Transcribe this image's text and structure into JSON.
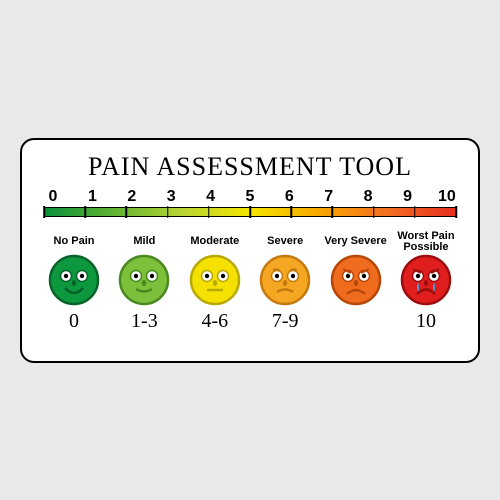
{
  "title": "PAIN ASSESSMENT TOOL",
  "title_fontsize": 26,
  "background_color": "#e8e9ea",
  "card": {
    "background": "#ffffff",
    "border_color": "#000000",
    "border_radius": 14
  },
  "scale": {
    "numbers": [
      "0",
      "1",
      "2",
      "3",
      "4",
      "5",
      "6",
      "7",
      "8",
      "9",
      "10"
    ],
    "gradient_colors": [
      "#0a8f3c",
      "#5fb233",
      "#b7d433",
      "#f5e500",
      "#f7a800",
      "#f36f21",
      "#e72e1e"
    ],
    "tick_color": "#000000"
  },
  "levels": [
    {
      "label": "No Pain",
      "range": "0",
      "face": {
        "fill": "#0d9840",
        "stroke": "#06642a",
        "expression": "happy"
      }
    },
    {
      "label": "Mild",
      "range": "1-3",
      "face": {
        "fill": "#7bbf3a",
        "stroke": "#4a8820",
        "expression": "slight-smile"
      }
    },
    {
      "label": "Moderate",
      "range": "4-6",
      "face": {
        "fill": "#f5e100",
        "stroke": "#b8a800",
        "expression": "neutral"
      }
    },
    {
      "label": "Severe",
      "range": "7-9",
      "face": {
        "fill": "#f5a623",
        "stroke": "#c47a0e",
        "expression": "worried"
      }
    },
    {
      "label": "Very Severe",
      "range": "",
      "face": {
        "fill": "#ef6c1f",
        "stroke": "#b84607",
        "expression": "sad"
      }
    },
    {
      "label": "Worst Pain\nPossible",
      "range": "10",
      "face": {
        "fill": "#e01e1e",
        "stroke": "#9c0d0d",
        "expression": "crying"
      }
    }
  ]
}
